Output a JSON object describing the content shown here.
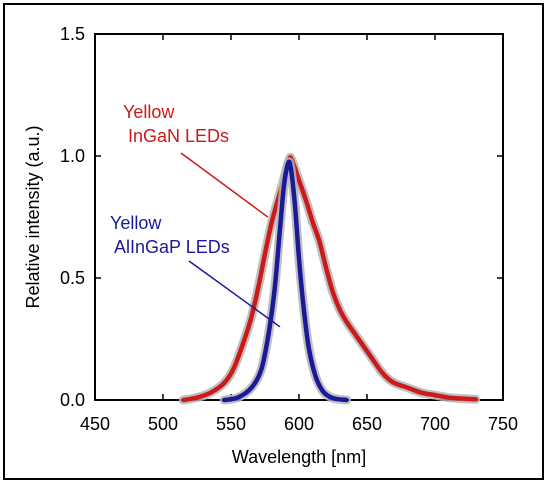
{
  "chart_data": {
    "type": "line",
    "title": "",
    "xlabel": "Wavelength  [nm]",
    "ylabel": "Relative intensity (a.u.)",
    "xlim": [
      450,
      750
    ],
    "ylim": [
      0,
      1.5
    ],
    "x_ticks": [
      450,
      500,
      550,
      600,
      650,
      700,
      750
    ],
    "y_ticks": [
      0.0,
      0.5,
      1.0,
      1.5
    ],
    "x_tick_labels": [
      "450",
      "500",
      "550",
      "600",
      "650",
      "700",
      "750"
    ],
    "y_tick_labels": [
      "0.0",
      "0.5",
      "1.0",
      "1.5"
    ],
    "grid": false,
    "legend": "none",
    "series": [
      {
        "color": "#cc1a1a",
        "x": [
          515,
          525,
          535,
          545,
          552,
          560,
          565,
          570,
          575,
          580,
          585,
          590,
          593,
          595,
          600,
          605,
          610,
          615,
          620,
          625,
          630,
          635,
          640,
          645,
          650,
          655,
          660,
          665,
          670,
          680,
          690,
          700,
          710,
          720,
          730
        ],
        "y": [
          0.0,
          0.01,
          0.03,
          0.07,
          0.13,
          0.25,
          0.34,
          0.46,
          0.6,
          0.73,
          0.83,
          0.93,
          0.99,
          0.98,
          0.9,
          0.82,
          0.73,
          0.65,
          0.54,
          0.44,
          0.37,
          0.32,
          0.28,
          0.24,
          0.2,
          0.16,
          0.12,
          0.09,
          0.07,
          0.05,
          0.03,
          0.02,
          0.01,
          0.006,
          0.003
        ]
      },
      {
        "color": "#1a1a99",
        "x": [
          545,
          555,
          565,
          572,
          577,
          582,
          586,
          589,
          592,
          594,
          597,
          600,
          603,
          607,
          612,
          617,
          622,
          627,
          635
        ],
        "y": [
          0.0,
          0.01,
          0.05,
          0.12,
          0.25,
          0.45,
          0.7,
          0.88,
          0.97,
          0.95,
          0.8,
          0.58,
          0.4,
          0.22,
          0.1,
          0.04,
          0.015,
          0.005,
          0.0
        ]
      }
    ],
    "annotations": [
      {
        "lines": [
          "Yellow",
          " InGaN LEDs"
        ],
        "color": "#cc1a1a",
        "points_to": [
          577,
          0.75
        ]
      },
      {
        "lines": [
          "Yellow",
          " AlInGaP LEDs"
        ],
        "color": "#1a1a99",
        "points_to": [
          586,
          0.3
        ]
      }
    ]
  }
}
